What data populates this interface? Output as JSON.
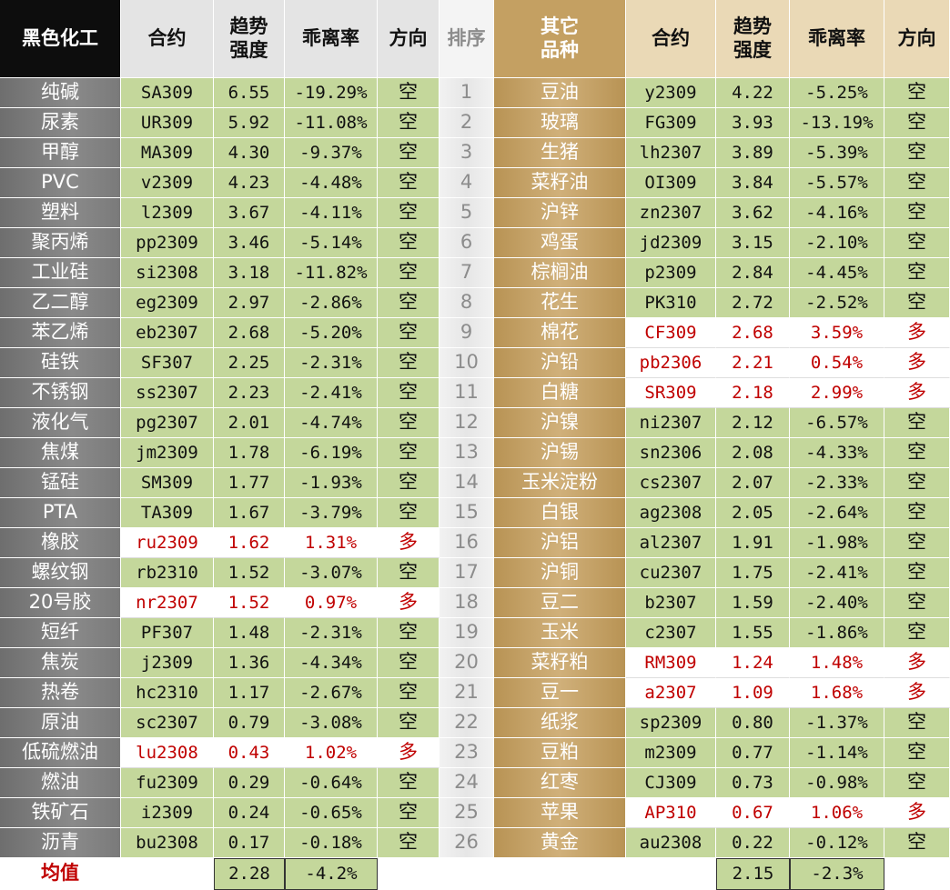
{
  "header": {
    "left": [
      "黑色化工",
      "合约",
      "趋势\n强度",
      "乖离率",
      "方向"
    ],
    "rank": "排序",
    "right": [
      "其它\n品种",
      "合约",
      "趋势\n强度",
      "乖离率",
      "方向"
    ]
  },
  "rows": [
    {
      "rank": "1",
      "left": {
        "name": "纯碱",
        "contract": "SA309",
        "strength": "6.55",
        "deviation": "-19.29%",
        "direction": "空"
      },
      "right": {
        "name": "豆油",
        "contract": "y2309",
        "strength": "4.22",
        "deviation": "-5.25%",
        "direction": "空"
      }
    },
    {
      "rank": "2",
      "left": {
        "name": "尿素",
        "contract": "UR309",
        "strength": "5.92",
        "deviation": "-11.08%",
        "direction": "空"
      },
      "right": {
        "name": "玻璃",
        "contract": "FG309",
        "strength": "3.93",
        "deviation": "-13.19%",
        "direction": "空"
      }
    },
    {
      "rank": "3",
      "left": {
        "name": "甲醇",
        "contract": "MA309",
        "strength": "4.30",
        "deviation": "-9.37%",
        "direction": "空"
      },
      "right": {
        "name": "生猪",
        "contract": "lh2307",
        "strength": "3.89",
        "deviation": "-5.39%",
        "direction": "空"
      }
    },
    {
      "rank": "4",
      "left": {
        "name": "PVC",
        "contract": "v2309",
        "strength": "4.23",
        "deviation": "-4.48%",
        "direction": "空"
      },
      "right": {
        "name": "菜籽油",
        "contract": "OI309",
        "strength": "3.84",
        "deviation": "-5.57%",
        "direction": "空"
      }
    },
    {
      "rank": "5",
      "left": {
        "name": "塑料",
        "contract": "l2309",
        "strength": "3.67",
        "deviation": "-4.11%",
        "direction": "空"
      },
      "right": {
        "name": "沪锌",
        "contract": "zn2307",
        "strength": "3.62",
        "deviation": "-4.16%",
        "direction": "空"
      }
    },
    {
      "rank": "6",
      "left": {
        "name": "聚丙烯",
        "contract": "pp2309",
        "strength": "3.46",
        "deviation": "-5.14%",
        "direction": "空"
      },
      "right": {
        "name": "鸡蛋",
        "contract": "jd2309",
        "strength": "3.15",
        "deviation": "-2.10%",
        "direction": "空"
      }
    },
    {
      "rank": "7",
      "left": {
        "name": "工业硅",
        "contract": "si2308",
        "strength": "3.18",
        "deviation": "-11.82%",
        "direction": "空"
      },
      "right": {
        "name": "棕榈油",
        "contract": "p2309",
        "strength": "2.84",
        "deviation": "-4.45%",
        "direction": "空"
      }
    },
    {
      "rank": "8",
      "left": {
        "name": "乙二醇",
        "contract": "eg2309",
        "strength": "2.97",
        "deviation": "-2.86%",
        "direction": "空"
      },
      "right": {
        "name": "花生",
        "contract": "PK310",
        "strength": "2.72",
        "deviation": "-2.52%",
        "direction": "空"
      }
    },
    {
      "rank": "9",
      "left": {
        "name": "苯乙烯",
        "contract": "eb2307",
        "strength": "2.68",
        "deviation": "-5.20%",
        "direction": "空"
      },
      "right": {
        "name": "棉花",
        "contract": "CF309",
        "strength": "2.68",
        "deviation": "3.59%",
        "direction": "多"
      }
    },
    {
      "rank": "10",
      "left": {
        "name": "硅铁",
        "contract": "SF307",
        "strength": "2.25",
        "deviation": "-2.31%",
        "direction": "空"
      },
      "right": {
        "name": "沪铅",
        "contract": "pb2306",
        "strength": "2.21",
        "deviation": "0.54%",
        "direction": "多"
      }
    },
    {
      "rank": "11",
      "left": {
        "name": "不锈钢",
        "contract": "ss2307",
        "strength": "2.23",
        "deviation": "-2.41%",
        "direction": "空"
      },
      "right": {
        "name": "白糖",
        "contract": "SR309",
        "strength": "2.18",
        "deviation": "2.99%",
        "direction": "多"
      }
    },
    {
      "rank": "12",
      "left": {
        "name": "液化气",
        "contract": "pg2307",
        "strength": "2.01",
        "deviation": "-4.74%",
        "direction": "空"
      },
      "right": {
        "name": "沪镍",
        "contract": "ni2307",
        "strength": "2.12",
        "deviation": "-6.57%",
        "direction": "空"
      }
    },
    {
      "rank": "13",
      "left": {
        "name": "焦煤",
        "contract": "jm2309",
        "strength": "1.78",
        "deviation": "-6.19%",
        "direction": "空"
      },
      "right": {
        "name": "沪锡",
        "contract": "sn2306",
        "strength": "2.08",
        "deviation": "-4.33%",
        "direction": "空"
      }
    },
    {
      "rank": "14",
      "left": {
        "name": "锰硅",
        "contract": "SM309",
        "strength": "1.77",
        "deviation": "-1.93%",
        "direction": "空"
      },
      "right": {
        "name": "玉米淀粉",
        "contract": "cs2307",
        "strength": "2.07",
        "deviation": "-2.33%",
        "direction": "空"
      }
    },
    {
      "rank": "15",
      "left": {
        "name": "PTA",
        "contract": "TA309",
        "strength": "1.67",
        "deviation": "-3.79%",
        "direction": "空"
      },
      "right": {
        "name": "白银",
        "contract": "ag2308",
        "strength": "2.05",
        "deviation": "-2.64%",
        "direction": "空"
      }
    },
    {
      "rank": "16",
      "left": {
        "name": "橡胶",
        "contract": "ru2309",
        "strength": "1.62",
        "deviation": "1.31%",
        "direction": "多"
      },
      "right": {
        "name": "沪铝",
        "contract": "al2307",
        "strength": "1.91",
        "deviation": "-1.98%",
        "direction": "空"
      }
    },
    {
      "rank": "17",
      "left": {
        "name": "螺纹钢",
        "contract": "rb2310",
        "strength": "1.52",
        "deviation": "-3.07%",
        "direction": "空"
      },
      "right": {
        "name": "沪铜",
        "contract": "cu2307",
        "strength": "1.75",
        "deviation": "-2.41%",
        "direction": "空"
      }
    },
    {
      "rank": "18",
      "left": {
        "name": "20号胶",
        "contract": "nr2307",
        "strength": "1.52",
        "deviation": "0.97%",
        "direction": "多"
      },
      "right": {
        "name": "豆二",
        "contract": "b2307",
        "strength": "1.59",
        "deviation": "-2.40%",
        "direction": "空"
      }
    },
    {
      "rank": "19",
      "left": {
        "name": "短纤",
        "contract": "PF307",
        "strength": "1.48",
        "deviation": "-2.31%",
        "direction": "空"
      },
      "right": {
        "name": "玉米",
        "contract": "c2307",
        "strength": "1.55",
        "deviation": "-1.86%",
        "direction": "空"
      }
    },
    {
      "rank": "20",
      "left": {
        "name": "焦炭",
        "contract": "j2309",
        "strength": "1.36",
        "deviation": "-4.34%",
        "direction": "空"
      },
      "right": {
        "name": "菜籽粕",
        "contract": "RM309",
        "strength": "1.24",
        "deviation": "1.48%",
        "direction": "多"
      }
    },
    {
      "rank": "21",
      "left": {
        "name": "热卷",
        "contract": "hc2310",
        "strength": "1.17",
        "deviation": "-2.67%",
        "direction": "空"
      },
      "right": {
        "name": "豆一",
        "contract": "a2307",
        "strength": "1.09",
        "deviation": "1.68%",
        "direction": "多"
      }
    },
    {
      "rank": "22",
      "left": {
        "name": "原油",
        "contract": "sc2307",
        "strength": "0.79",
        "deviation": "-3.08%",
        "direction": "空"
      },
      "right": {
        "name": "纸浆",
        "contract": "sp2309",
        "strength": "0.80",
        "deviation": "-1.37%",
        "direction": "空"
      }
    },
    {
      "rank": "23",
      "left": {
        "name": "低硫燃油",
        "contract": "lu2308",
        "strength": "0.43",
        "deviation": "1.02%",
        "direction": "多"
      },
      "right": {
        "name": "豆粕",
        "contract": "m2309",
        "strength": "0.77",
        "deviation": "-1.14%",
        "direction": "空"
      }
    },
    {
      "rank": "24",
      "left": {
        "name": "燃油",
        "contract": "fu2309",
        "strength": "0.29",
        "deviation": "-0.64%",
        "direction": "空"
      },
      "right": {
        "name": "红枣",
        "contract": "CJ309",
        "strength": "0.73",
        "deviation": "-0.98%",
        "direction": "空"
      }
    },
    {
      "rank": "25",
      "left": {
        "name": "铁矿石",
        "contract": "i2309",
        "strength": "0.24",
        "deviation": "-0.65%",
        "direction": "空"
      },
      "right": {
        "name": "苹果",
        "contract": "AP310",
        "strength": "0.67",
        "deviation": "1.06%",
        "direction": "多"
      }
    },
    {
      "rank": "26",
      "left": {
        "name": "沥青",
        "contract": "bu2308",
        "strength": "0.17",
        "deviation": "-0.18%",
        "direction": "空"
      },
      "right": {
        "name": "黄金",
        "contract": "au2308",
        "strength": "0.22",
        "deviation": "-0.12%",
        "direction": "空"
      }
    }
  ],
  "footer": {
    "label": "均值",
    "left": {
      "strength": "2.28",
      "deviation": "-4.2%"
    },
    "right": {
      "strength": "2.15",
      "deviation": "-2.3%"
    }
  }
}
